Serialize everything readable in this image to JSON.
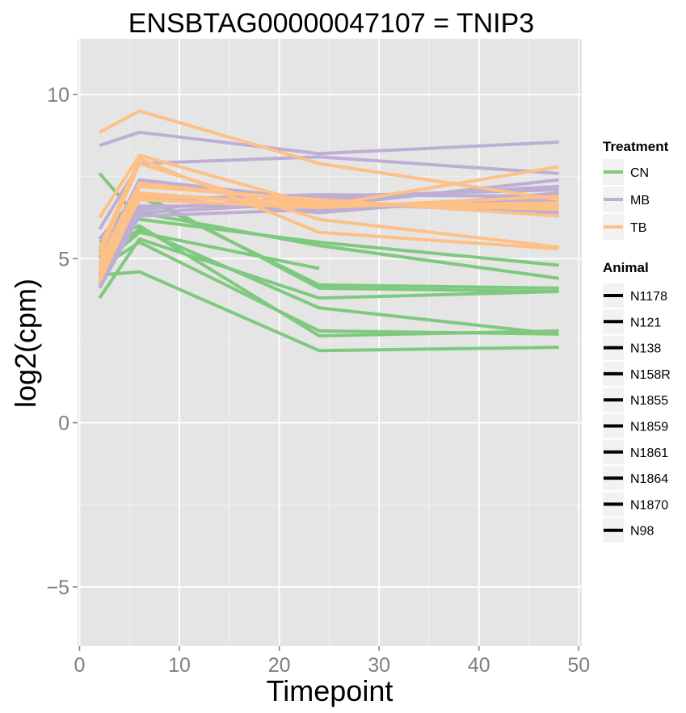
{
  "chart_data": {
    "type": "line",
    "title": "ENSBTAG00000047107  =  TNIP3",
    "xlabel": "Timepoint",
    "ylabel": "log2(cpm)",
    "xlim": [
      -0.2,
      50.3
    ],
    "ylim": [
      -6.8,
      11.7
    ],
    "x_ticks": [
      0,
      10,
      20,
      30,
      40,
      50
    ],
    "y_ticks": [
      -5,
      0,
      5,
      10
    ],
    "x_tick_labels": [
      "0",
      "10",
      "20",
      "30",
      "40",
      "50"
    ],
    "y_tick_labels": [
      "−5",
      "0",
      "5",
      "10"
    ],
    "grid": true,
    "legend_position": "right",
    "colors": {
      "CN": "#7fc97f",
      "MB": "#beaed4",
      "TB": "#fdc086",
      "panel": "#e5e5e5",
      "grid": "#ffffff",
      "animal_key": "#000000"
    },
    "legend": {
      "treatment": {
        "title": "Treatment",
        "entries": [
          "CN",
          "MB",
          "TB"
        ]
      },
      "animal": {
        "title": "Animal",
        "entries": [
          "N1178",
          "N121",
          "N138",
          "N158R",
          "N1855",
          "N1859",
          "N1861",
          "N1864",
          "N1870",
          "N98"
        ]
      }
    },
    "series": [
      {
        "treatment": "CN",
        "x": [
          2,
          6,
          24,
          48
        ],
        "y": [
          7.6,
          6.2,
          5.5,
          4.8
        ]
      },
      {
        "treatment": "CN",
        "x": [
          2,
          6,
          24,
          48
        ],
        "y": [
          5.6,
          7.0,
          4.1,
          4.0
        ]
      },
      {
        "treatment": "CN",
        "x": [
          2,
          6,
          24,
          48
        ],
        "y": [
          5.2,
          6.9,
          4.2,
          4.1
        ]
      },
      {
        "treatment": "CN",
        "x": [
          2,
          6,
          24,
          48
        ],
        "y": [
          4.9,
          6.4,
          5.4,
          4.4
        ]
      },
      {
        "treatment": "CN",
        "x": [
          2,
          6,
          24,
          48
        ],
        "y": [
          4.5,
          4.6,
          2.2,
          2.3
        ]
      },
      {
        "treatment": "CN",
        "x": [
          2,
          6,
          24,
          48
        ],
        "y": [
          5.0,
          5.9,
          3.5,
          2.7
        ]
      },
      {
        "treatment": "CN",
        "x": [
          2,
          6,
          24,
          48
        ],
        "y": [
          3.8,
          5.6,
          3.8,
          4.0
        ]
      },
      {
        "treatment": "CN",
        "x": [
          2,
          6,
          24,
          48
        ],
        "y": [
          4.7,
          5.5,
          2.8,
          2.7
        ]
      },
      {
        "treatment": "CN",
        "x": [
          2,
          6,
          24,
          48
        ],
        "y": [
          5.5,
          6.0,
          2.65,
          2.8
        ]
      },
      {
        "treatment": "CN",
        "x": [
          2,
          6,
          24
        ],
        "y": [
          4.8,
          5.8,
          4.7
        ]
      },
      {
        "treatment": "MB",
        "x": [
          2,
          6,
          24,
          48
        ],
        "y": [
          8.45,
          8.85,
          8.2,
          8.55
        ]
      },
      {
        "treatment": "MB",
        "x": [
          2,
          6,
          24,
          48
        ],
        "y": [
          5.9,
          7.9,
          8.1,
          7.6
        ]
      },
      {
        "treatment": "MB",
        "x": [
          2,
          6,
          24,
          48
        ],
        "y": [
          5.0,
          7.4,
          6.8,
          7.2
        ]
      },
      {
        "treatment": "MB",
        "x": [
          2,
          6,
          24,
          48
        ],
        "y": [
          5.3,
          6.9,
          6.4,
          7.0
        ]
      },
      {
        "treatment": "MB",
        "x": [
          2,
          6,
          24,
          48
        ],
        "y": [
          5.6,
          6.8,
          6.95,
          6.9
        ]
      },
      {
        "treatment": "MB",
        "x": [
          2,
          6,
          24,
          48
        ],
        "y": [
          4.6,
          6.6,
          6.6,
          7.4
        ]
      },
      {
        "treatment": "MB",
        "x": [
          2,
          6,
          24,
          48
        ],
        "y": [
          4.2,
          6.4,
          6.7,
          6.4
        ]
      },
      {
        "treatment": "MB",
        "x": [
          2,
          6,
          24,
          48
        ],
        "y": [
          4.1,
          6.3,
          6.5,
          6.8
        ]
      },
      {
        "treatment": "MB",
        "x": [
          2,
          6,
          24,
          48
        ],
        "y": [
          4.5,
          6.5,
          6.9,
          7.1
        ]
      },
      {
        "treatment": "TB",
        "x": [
          2,
          6,
          24,
          48
        ],
        "y": [
          8.85,
          9.5,
          7.9,
          6.8
        ]
      },
      {
        "treatment": "TB",
        "x": [
          2,
          6,
          24,
          48
        ],
        "y": [
          6.25,
          8.15,
          6.6,
          7.8
        ]
      },
      {
        "treatment": "TB",
        "x": [
          2,
          6,
          24,
          48
        ],
        "y": [
          5.3,
          8.05,
          5.8,
          5.3
        ]
      },
      {
        "treatment": "TB",
        "x": [
          2,
          6,
          24,
          48
        ],
        "y": [
          5.1,
          7.9,
          6.2,
          5.35
        ]
      },
      {
        "treatment": "TB",
        "x": [
          2,
          6,
          24,
          48
        ],
        "y": [
          4.9,
          7.3,
          6.7,
          6.5
        ]
      },
      {
        "treatment": "TB",
        "x": [
          2,
          6,
          24,
          48
        ],
        "y": [
          4.7,
          7.2,
          6.8,
          6.3
        ]
      },
      {
        "treatment": "TB",
        "x": [
          2,
          6,
          24,
          48
        ],
        "y": [
          4.4,
          7.0,
          6.6,
          6.7
        ]
      },
      {
        "treatment": "TB",
        "x": [
          2,
          6,
          24,
          48
        ],
        "y": [
          4.3,
          6.9,
          6.7,
          6.6
        ]
      },
      {
        "treatment": "TB",
        "x": [
          2,
          6,
          24,
          48
        ],
        "y": [
          4.6,
          6.8,
          6.55,
          6.9
        ]
      }
    ]
  }
}
